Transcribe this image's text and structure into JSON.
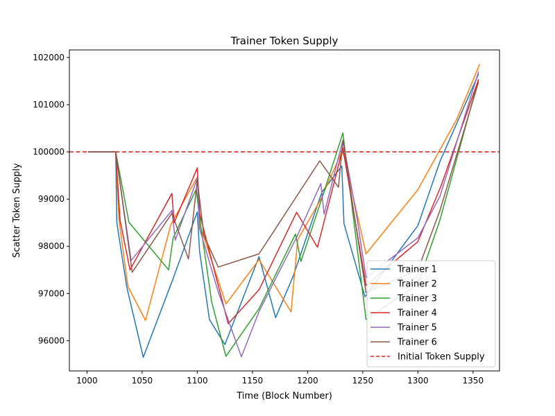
{
  "chart_data": {
    "type": "line",
    "title": "Trainer Token Supply",
    "xlabel": "Time (Block Number)",
    "ylabel": "Scatter Token Supply",
    "xlim": [
      984,
      1374
    ],
    "ylim": [
      95360,
      102160
    ],
    "xticks": [
      1000,
      1050,
      1100,
      1150,
      1200,
      1250,
      1300,
      1350
    ],
    "yticks": [
      96000,
      97000,
      98000,
      99000,
      100000,
      101000,
      102000
    ],
    "legend_position": "lower-right",
    "grid": false,
    "reference_line": {
      "name": "Initial Token Supply",
      "y": 100000,
      "color": "#d62728",
      "style": "dashed"
    },
    "series": [
      {
        "name": "Trainer 1",
        "color": "#1f77b4",
        "x": [
          1001,
          1026,
          1027,
          1036,
          1051,
          1078,
          1100,
          1102,
          1111,
          1125,
          1156,
          1171,
          1187,
          1194,
          1213,
          1231,
          1233,
          1252,
          1300,
          1320,
          1355
        ],
        "y": [
          100000,
          100000,
          98500,
          97140,
          95650,
          97310,
          98730,
          97900,
          96450,
          95920,
          97780,
          96490,
          97370,
          97850,
          99150,
          99700,
          98480,
          96930,
          98440,
          99800,
          101650
        ]
      },
      {
        "name": "Trainer 2",
        "color": "#ff7f0e",
        "x": [
          1001,
          1026,
          1029,
          1037,
          1053,
          1076,
          1100,
          1103,
          1126,
          1156,
          1185,
          1191,
          1212,
          1231,
          1233,
          1253,
          1300,
          1335,
          1356
        ],
        "y": [
          100000,
          100000,
          98560,
          97150,
          96430,
          98460,
          99470,
          98400,
          96780,
          97720,
          96610,
          98140,
          99000,
          100000,
          99920,
          97840,
          99200,
          100680,
          101860
        ]
      },
      {
        "name": "Trainer 3",
        "color": "#2ca02c",
        "x": [
          1001,
          1026,
          1038,
          1074,
          1078,
          1099,
          1102,
          1113,
          1126,
          1156,
          1189,
          1194,
          1213,
          1232,
          1253,
          1300,
          1320,
          1355
        ],
        "y": [
          100000,
          100000,
          98510,
          97500,
          98170,
          99210,
          98620,
          96820,
          95670,
          96680,
          98260,
          97680,
          99020,
          100400,
          96450,
          97200,
          98560,
          101540
        ]
      },
      {
        "name": "Trainer 4",
        "color": "#d62728",
        "x": [
          1001,
          1026,
          1030,
          1039,
          1077,
          1079,
          1100,
          1102,
          1128,
          1156,
          1190,
          1209,
          1232,
          1253,
          1300,
          1321,
          1355
        ],
        "y": [
          100000,
          100000,
          98550,
          97500,
          99120,
          98500,
          99660,
          98700,
          96360,
          97080,
          98720,
          97980,
          100080,
          97170,
          98100,
          99280,
          101530
        ]
      },
      {
        "name": "Trainer 5",
        "color": "#9467bd",
        "x": [
          1001,
          1026,
          1040,
          1077,
          1080,
          1100,
          1102,
          1119,
          1140,
          1156,
          1190,
          1212,
          1215,
          1232,
          1245,
          1253,
          1300,
          1320,
          1355
        ],
        "y": [
          100000,
          100000,
          97700,
          98760,
          98130,
          99440,
          98380,
          97030,
          95660,
          96620,
          98190,
          99330,
          98680,
          100250,
          98570,
          97340,
          98180,
          99060,
          101700
        ]
      },
      {
        "name": "Trainer 6",
        "color": "#8c564b",
        "x": [
          1001,
          1026,
          1041,
          1077,
          1092,
          1100,
          1106,
          1119,
          1156,
          1211,
          1228,
          1232,
          1253,
          1300,
          1320,
          1355
        ],
        "y": [
          100000,
          100000,
          97450,
          98700,
          97730,
          99400,
          98230,
          97560,
          97840,
          99810,
          99250,
          100250,
          97020,
          97500,
          98760,
          101480
        ]
      }
    ]
  }
}
